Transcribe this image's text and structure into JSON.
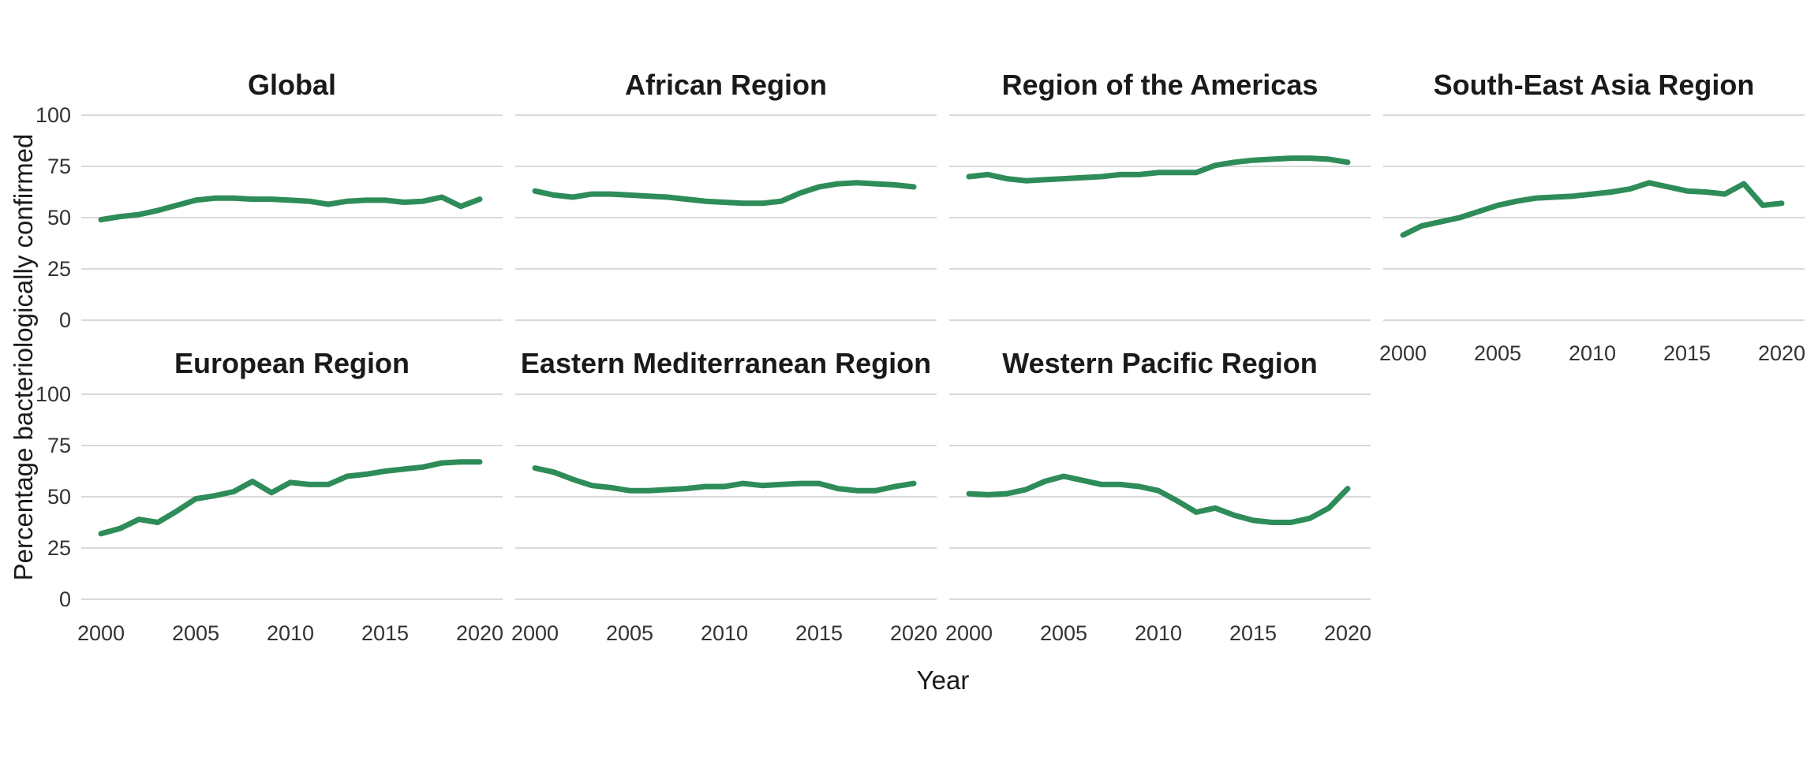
{
  "chart_data": {
    "type": "line",
    "title": "",
    "xlabel": "Year",
    "ylabel": "Percentage bacteriologically confirmed",
    "x": [
      2000,
      2001,
      2002,
      2003,
      2004,
      2005,
      2006,
      2007,
      2008,
      2009,
      2010,
      2011,
      2012,
      2013,
      2014,
      2015,
      2016,
      2017,
      2018,
      2019,
      2020
    ],
    "x_ticks": [
      2000,
      2005,
      2010,
      2015,
      2020
    ],
    "y_ticks": [
      100,
      75,
      50,
      25,
      0
    ],
    "ylim": [
      0,
      100
    ],
    "xlim": [
      2000,
      2020
    ],
    "grid": "horizontal-major-only",
    "legend": "none",
    "line_color": "#2e8c59",
    "grid_color": "#d9d9d9",
    "text_color": "#1a1a1a",
    "tick_text_color": "#333333",
    "facets": [
      {
        "title": "Global",
        "row": 0,
        "col": 0,
        "x_axis_visible": false,
        "values": [
          49,
          50.5,
          51.5,
          53.5,
          56,
          58.5,
          59.5,
          59.5,
          59,
          59,
          58.5,
          58,
          56.5,
          58,
          58.5,
          58.5,
          57.5,
          58,
          60,
          55.5,
          59
        ]
      },
      {
        "title": "African Region",
        "row": 0,
        "col": 1,
        "x_axis_visible": false,
        "values": [
          63,
          61,
          60,
          61.5,
          61.5,
          61,
          60.5,
          60,
          59,
          58,
          57.5,
          57,
          57,
          58,
          62,
          65,
          66.5,
          67,
          66.5,
          66,
          65
        ]
      },
      {
        "title": "Region of the Americas",
        "row": 0,
        "col": 2,
        "x_axis_visible": false,
        "values": [
          70,
          71,
          69,
          68,
          68.5,
          69,
          69.5,
          70,
          71,
          71,
          72,
          72,
          72,
          75.5,
          77,
          78,
          78.5,
          79,
          79,
          78.5,
          77
        ]
      },
      {
        "title": "South-East Asia Region",
        "row": 0,
        "col": 3,
        "x_axis_visible": true,
        "values": [
          41.5,
          46,
          48,
          50,
          53,
          56,
          58,
          59.5,
          60,
          60.5,
          61.5,
          62.5,
          64,
          67,
          65,
          63,
          62.5,
          61.5,
          66.5,
          56,
          57
        ]
      },
      {
        "title": "European Region",
        "row": 1,
        "col": 0,
        "x_axis_visible": true,
        "values": [
          32,
          34.5,
          39,
          37.5,
          43,
          49,
          50.5,
          52.5,
          57.5,
          52,
          57,
          56,
          56,
          60,
          61,
          62.5,
          63.5,
          64.5,
          66.5,
          67,
          67
        ]
      },
      {
        "title": "Eastern Mediterranean Region",
        "row": 1,
        "col": 1,
        "x_axis_visible": true,
        "values": [
          64,
          62,
          58.5,
          55.5,
          54.5,
          53,
          53,
          53.5,
          54,
          55,
          55,
          56.5,
          55.5,
          56,
          56.5,
          56.5,
          54,
          53,
          53,
          55,
          56.5
        ]
      },
      {
        "title": "Western Pacific Region",
        "row": 1,
        "col": 2,
        "x_axis_visible": true,
        "values": [
          51.5,
          51,
          51.5,
          53.5,
          57.5,
          60,
          58,
          56,
          56,
          55,
          53,
          48,
          42.5,
          44.5,
          41,
          38.5,
          37.5,
          37.5,
          39.5,
          44.5,
          54
        ]
      }
    ]
  }
}
